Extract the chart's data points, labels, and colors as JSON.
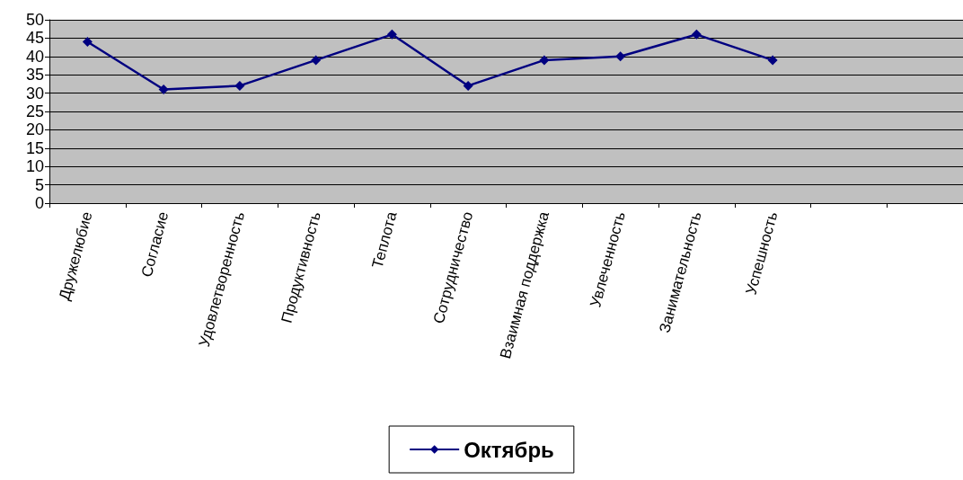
{
  "chart_data": {
    "type": "line",
    "categories": [
      "Дружелюбие",
      "Согласие",
      "Удовлетворенность",
      "Продуктивность",
      "Теплота",
      "Сотрудничество",
      "Взаимная поддержка",
      "Увлеченность",
      "Занимательность",
      "Успешность",
      null,
      null
    ],
    "series": [
      {
        "name": "Октябрь",
        "color": "#000080",
        "values": [
          44,
          31,
          32,
          39,
          46,
          32,
          39,
          40,
          46,
          39,
          null,
          null
        ]
      }
    ],
    "ylim": [
      0,
      50
    ],
    "yticks": [
      0,
      5,
      10,
      15,
      20,
      25,
      30,
      35,
      40,
      45,
      50
    ],
    "grid": "y",
    "legend": "bottom",
    "marker": "diamond",
    "line_style": "solid"
  }
}
